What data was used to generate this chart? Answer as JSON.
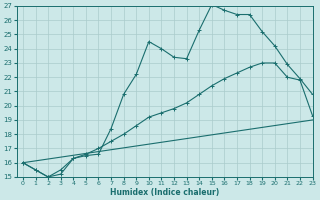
{
  "xlabel": "Humidex (Indice chaleur)",
  "background_color": "#cce8e8",
  "grid_color": "#aacccc",
  "line_color": "#1a6e6e",
  "xlim": [
    -0.5,
    23
  ],
  "ylim": [
    15,
    27
  ],
  "x_ticks": [
    0,
    1,
    2,
    3,
    4,
    5,
    6,
    7,
    8,
    9,
    10,
    11,
    12,
    13,
    14,
    15,
    16,
    17,
    18,
    19,
    20,
    21,
    22,
    23
  ],
  "y_ticks": [
    15,
    16,
    17,
    18,
    19,
    20,
    21,
    22,
    23,
    24,
    25,
    26,
    27
  ],
  "line1_x": [
    0,
    1,
    2,
    3,
    4,
    5,
    6,
    7,
    8,
    9,
    10,
    11,
    12,
    13,
    14,
    15,
    16,
    17,
    18,
    19,
    20,
    21,
    22,
    23
  ],
  "line1_y": [
    16.0,
    15.5,
    15.0,
    15.2,
    16.3,
    16.5,
    16.6,
    18.4,
    20.8,
    22.2,
    24.5,
    24.0,
    23.4,
    23.3,
    25.3,
    27.1,
    26.7,
    26.4,
    26.4,
    25.2,
    24.2,
    22.9,
    21.9,
    20.8
  ],
  "line2_x": [
    0,
    1,
    2,
    3,
    4,
    5,
    6,
    7,
    8,
    9,
    10,
    11,
    12,
    13,
    14,
    15,
    16,
    17,
    18,
    19,
    20,
    21,
    22,
    23
  ],
  "line2_y": [
    16.0,
    15.5,
    15.0,
    15.5,
    16.3,
    16.6,
    17.0,
    17.5,
    18.0,
    18.6,
    19.2,
    19.5,
    19.8,
    20.2,
    20.8,
    21.4,
    21.9,
    22.3,
    22.7,
    23.0,
    23.0,
    22.0,
    21.8,
    19.3
  ],
  "line3_x": [
    0,
    23
  ],
  "line3_y": [
    16.0,
    19.0
  ]
}
